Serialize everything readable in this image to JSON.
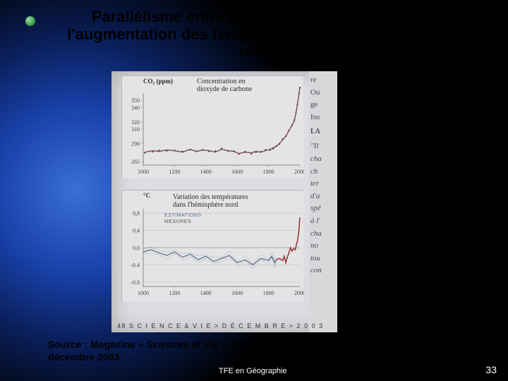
{
  "slide": {
    "title": "Parallélisme entre la révolution industrielle et l'augmentation des températures dans l'hémisphère nord.",
    "source_prefix": "Source : Magasine « ",
    "source_title": "Sciences et Vie",
    "source_suffix": " », Mensuel n°1035, p.48, Dossier spécial - décembre 2003",
    "footer_label": "TFE en Géographie",
    "page_number": "33"
  },
  "scan": {
    "footer_text": "48   S C I E N C E   &   V I E   >   D É C E M B R E   >   2 0 0 3",
    "side_text": [
      "re",
      "Ou",
      "ge",
      "Ins",
      "LA",
      "\"Il",
      "cha",
      "ch",
      "ter",
      "d'a",
      "spé",
      "à l'",
      "cha",
      "no",
      "tou",
      "con"
    ]
  },
  "co2_chart": {
    "type": "line_scatter",
    "title_lines": [
      "Concentration en",
      "dioxyde de carbone"
    ],
    "y_unit": "CO₂ (ppm)",
    "y_ticks": [
      "265",
      "290",
      "310",
      "320",
      "340",
      "350"
    ],
    "x_ticks": [
      "1000",
      "1200",
      "1400",
      "1600",
      "1800",
      "2000"
    ],
    "xlim": [
      1000,
      2000
    ],
    "ylim": [
      260,
      360
    ],
    "line_color": "#7a4a5a",
    "point_color": "#5a3a48",
    "grid_color": "#b8b8bc",
    "bg_color": "#e4e4e6",
    "points": [
      [
        1010,
        278
      ],
      [
        1060,
        280
      ],
      [
        1100,
        279
      ],
      [
        1150,
        281
      ],
      [
        1200,
        280
      ],
      [
        1250,
        278
      ],
      [
        1300,
        282
      ],
      [
        1340,
        279
      ],
      [
        1380,
        281
      ],
      [
        1420,
        280
      ],
      [
        1460,
        278
      ],
      [
        1500,
        282
      ],
      [
        1540,
        280
      ],
      [
        1580,
        279
      ],
      [
        1610,
        276
      ],
      [
        1650,
        278
      ],
      [
        1690,
        277
      ],
      [
        1720,
        279
      ],
      [
        1750,
        278
      ],
      [
        1780,
        280
      ],
      [
        1810,
        282
      ],
      [
        1830,
        284
      ],
      [
        1850,
        286
      ],
      [
        1870,
        290
      ],
      [
        1890,
        295
      ],
      [
        1910,
        300
      ],
      [
        1930,
        308
      ],
      [
        1950,
        315
      ],
      [
        1965,
        322
      ],
      [
        1975,
        332
      ],
      [
        1985,
        345
      ],
      [
        1995,
        360
      ],
      [
        2000,
        368
      ]
    ]
  },
  "temp_chart": {
    "type": "line",
    "title_lines": [
      "Variation des températures",
      "dans l'hémisphère nord"
    ],
    "y_unit": "°C",
    "y_ticks": [
      "-0.8",
      "-0.4",
      "0,0",
      "0,4",
      "0,8"
    ],
    "x_ticks": [
      "1000",
      "1200",
      "1400",
      "1600",
      "1800",
      "2000"
    ],
    "xlim": [
      1000,
      2000
    ],
    "ylim": [
      -0.9,
      0.9
    ],
    "series": {
      "estimations": {
        "label": "ESTIMATIONS",
        "color": "#5a6a88",
        "points": [
          [
            1000,
            -0.1
          ],
          [
            1050,
            -0.05
          ],
          [
            1100,
            -0.12
          ],
          [
            1150,
            -0.18
          ],
          [
            1200,
            -0.1
          ],
          [
            1250,
            -0.22
          ],
          [
            1300,
            -0.15
          ],
          [
            1350,
            -0.28
          ],
          [
            1400,
            -0.2
          ],
          [
            1450,
            -0.32
          ],
          [
            1500,
            -0.25
          ],
          [
            1550,
            -0.18
          ],
          [
            1600,
            -0.35
          ],
          [
            1650,
            -0.28
          ],
          [
            1700,
            -0.4
          ],
          [
            1750,
            -0.25
          ],
          [
            1800,
            -0.3
          ],
          [
            1820,
            -0.2
          ],
          [
            1840,
            -0.35
          ],
          [
            1850,
            -0.28
          ]
        ]
      },
      "mesures": {
        "label": "MESURES",
        "color": "#9a3a3a",
        "points": [
          [
            1850,
            -0.28
          ],
          [
            1870,
            -0.25
          ],
          [
            1890,
            -0.3
          ],
          [
            1900,
            -0.2
          ],
          [
            1910,
            -0.35
          ],
          [
            1920,
            -0.22
          ],
          [
            1930,
            -0.12
          ],
          [
            1940,
            0.0
          ],
          [
            1950,
            -0.08
          ],
          [
            1960,
            -0.02
          ],
          [
            1970,
            -0.05
          ],
          [
            1980,
            0.1
          ],
          [
            1985,
            0.15
          ],
          [
            1990,
            0.28
          ],
          [
            1995,
            0.45
          ],
          [
            2000,
            0.7
          ]
        ]
      }
    },
    "grid_color": "#b8b8bc",
    "bg_color": "#e4e4e6"
  }
}
